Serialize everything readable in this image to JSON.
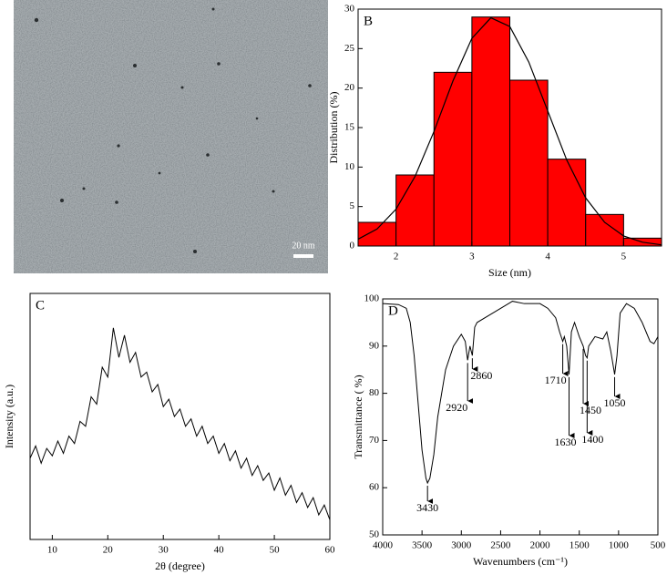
{
  "image": {
    "scale_bar": "20 nm"
  },
  "chart_data": [
    {
      "type": "histogram",
      "label": "B",
      "xlabel": "Size (nm)",
      "ylabel": "Distribution (%)",
      "bins": [
        1.5,
        2,
        2.5,
        3,
        3.5,
        4,
        4.5,
        5,
        5.5
      ],
      "counts": [
        3,
        9,
        22,
        29,
        21,
        11,
        4,
        1
      ],
      "color": "#ff0000",
      "fit": {
        "color": "#000000",
        "x": [
          1.5,
          1.75,
          2,
          2.25,
          2.5,
          2.75,
          3,
          3.25,
          3.5,
          3.75,
          4,
          4.25,
          4.5,
          4.75,
          5,
          5.25,
          5.5
        ],
        "values": [
          0.87,
          2.16,
          4.67,
          8.8,
          14.5,
          20.9,
          26.3,
          28.9,
          27.8,
          23.3,
          17.1,
          10.9,
          6.1,
          3.0,
          1.28,
          0.48,
          0.15
        ]
      },
      "xlim": [
        1.5,
        5.5
      ],
      "xticks": [
        2,
        3,
        4,
        5
      ],
      "ylim": [
        0,
        30
      ],
      "yticks": [
        0,
        5,
        10,
        15,
        20,
        25,
        30
      ]
    },
    {
      "type": "line",
      "label": "C",
      "xlabel": "2θ (degree)",
      "ylabel": "Intensity (a.u.)",
      "color": "#000000",
      "x": [
        6,
        7,
        8,
        9,
        10,
        11,
        12,
        13,
        14,
        15,
        16,
        17,
        18,
        19,
        20,
        21,
        22,
        23,
        24,
        25,
        26,
        27,
        28,
        29,
        30,
        31,
        32,
        33,
        34,
        35,
        36,
        37,
        38,
        39,
        40,
        41,
        42,
        43,
        44,
        45,
        46,
        47,
        48,
        49,
        50,
        51,
        52,
        53,
        54,
        55,
        56,
        57,
        58,
        59,
        60
      ],
      "values": [
        33,
        38,
        31,
        37,
        34,
        40,
        35,
        42,
        39,
        48,
        46,
        58,
        55,
        70,
        66,
        86,
        74,
        83,
        72,
        76,
        66,
        68,
        60,
        63,
        54,
        57,
        50,
        53,
        46,
        49,
        42,
        46,
        39,
        42,
        35,
        39,
        32,
        36,
        29,
        33,
        26,
        30,
        24,
        27,
        20,
        25,
        18,
        22,
        15,
        19,
        13,
        17,
        10,
        14,
        8
      ],
      "xlim": [
        6,
        60
      ],
      "xticks": [
        10,
        20,
        30,
        40,
        50,
        60
      ],
      "ylim": [
        0,
        100
      ]
    },
    {
      "type": "line",
      "label": "D",
      "xlabel": "Wavenumbers (cm⁻¹)",
      "ylabel": "Transmittance ( %)",
      "color": "#000000",
      "x": [
        4000,
        3800,
        3700,
        3650,
        3600,
        3550,
        3500,
        3450,
        3430,
        3400,
        3350,
        3300,
        3200,
        3100,
        3000,
        2950,
        2920,
        2890,
        2860,
        2830,
        2800,
        2600,
        2400,
        2350,
        2200,
        2000,
        1900,
        1800,
        1750,
        1710,
        1690,
        1660,
        1630,
        1600,
        1560,
        1500,
        1450,
        1420,
        1400,
        1380,
        1300,
        1200,
        1150,
        1100,
        1050,
        1020,
        980,
        900,
        800,
        700,
        600,
        550,
        500
      ],
      "values": [
        99,
        98.8,
        98,
        95,
        88,
        78,
        68,
        62,
        61,
        62,
        67,
        75,
        85,
        90,
        92.5,
        91,
        87,
        90,
        88,
        94,
        95,
        97,
        99,
        99.5,
        99,
        99,
        98,
        96,
        93,
        91,
        92,
        90,
        84,
        93,
        95,
        92,
        90,
        88,
        87.5,
        90,
        92,
        91.5,
        93,
        89,
        84,
        88,
        97,
        99,
        98,
        95,
        91,
        90.5,
        92
      ],
      "peaks": [
        3430,
        2920,
        2860,
        1710,
        1630,
        1450,
        1400,
        1050
      ],
      "xlim": [
        4000,
        500
      ],
      "xticks": [
        4000,
        3500,
        3000,
        2500,
        2000,
        1500,
        1000,
        500
      ],
      "ylim": [
        50,
        100
      ],
      "yticks": [
        50,
        60,
        70,
        80,
        90,
        100
      ]
    }
  ]
}
